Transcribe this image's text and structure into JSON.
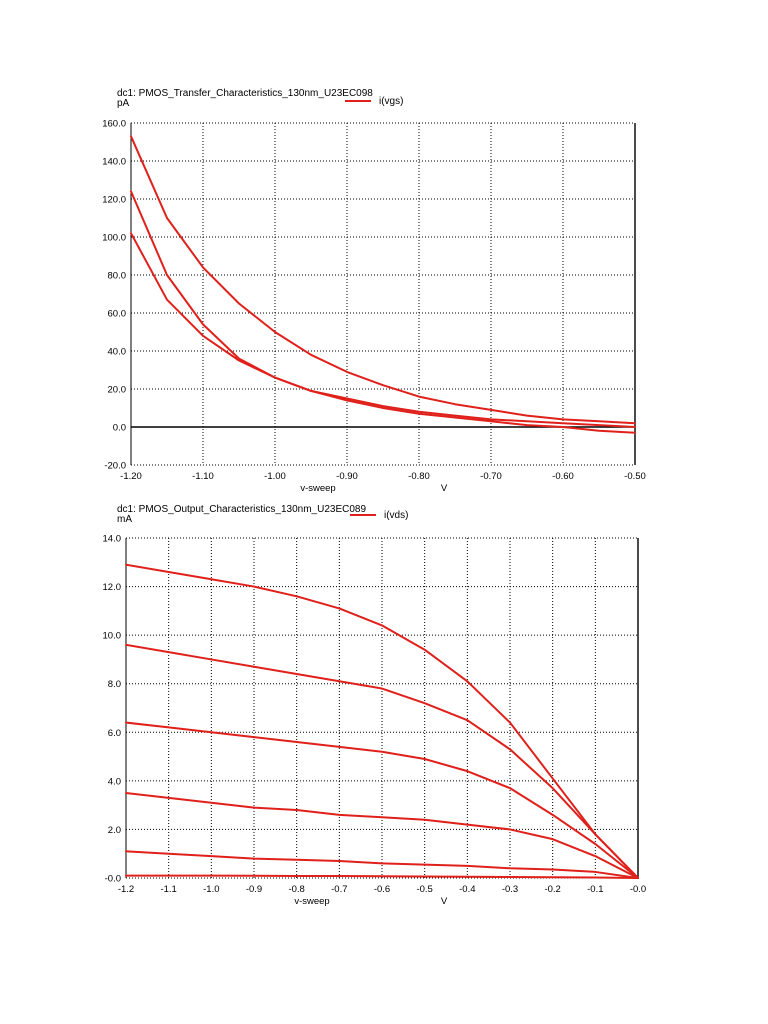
{
  "colors": {
    "curve": "#e0201a",
    "zero_line": "#000000",
    "grid": "#000000",
    "text": "#000000"
  },
  "charts": [
    {
      "title": "dc1: PMOS_Transfer_Characteristics_130nm_U23EC098",
      "unit": "pA",
      "legend": "i(vgs)",
      "xlabel": "v-sweep",
      "xunit": "V"
    },
    {
      "title": "dc1: PMOS_Output_Characteristics_130nm_U23EC089",
      "unit": "mA",
      "legend": "i(vds)",
      "xlabel": "v-sweep",
      "xunit": "V"
    }
  ],
  "chart_data": [
    {
      "type": "line",
      "title": "dc1: PMOS_Transfer_Characteristics_130nm_U23EC098",
      "xlabel": "v-sweep",
      "xunit": "V",
      "ylabel": "pA",
      "xlim": [
        -1.2,
        -0.5
      ],
      "ylim": [
        -20,
        160
      ],
      "xticks": [
        -1.2,
        -1.1,
        -1.0,
        -0.9,
        -0.8,
        -0.7,
        -0.6,
        -0.5
      ],
      "xtick_labels": [
        "-1.20",
        "-1.10",
        "-1.00",
        "-0.90",
        "-0.80",
        "-0.70",
        "-0.60",
        "-0.50"
      ],
      "yticks": [
        -20,
        0,
        20,
        40,
        60,
        80,
        100,
        120,
        140,
        160
      ],
      "ytick_labels": [
        "-20.0",
        "0.0",
        "20.0",
        "40.0",
        "60.0",
        "80.0",
        "100.0",
        "120.0",
        "140.0",
        "160.0"
      ],
      "grid": true,
      "legend": "top",
      "zero_line": true,
      "x": [
        -1.2,
        -1.15,
        -1.1,
        -1.05,
        -1.0,
        -0.95,
        -0.9,
        -0.85,
        -0.8,
        -0.75,
        -0.7,
        -0.65,
        -0.6,
        -0.55,
        -0.5
      ],
      "series": [
        {
          "values": [
            153,
            110,
            84,
            65,
            50,
            38,
            29,
            22,
            16,
            12,
            9,
            6,
            4,
            3,
            2
          ]
        },
        {
          "values": [
            124,
            80,
            54,
            36,
            26,
            19,
            15,
            11,
            8,
            6,
            4,
            3,
            2,
            1,
            0
          ]
        },
        {
          "values": [
            102,
            67,
            48,
            35,
            26,
            19,
            14,
            10,
            7,
            5,
            3,
            1,
            0,
            -2,
            -3
          ]
        }
      ]
    },
    {
      "type": "line",
      "title": "dc1: PMOS_Output_Characteristics_130nm_U23EC089",
      "xlabel": "v-sweep",
      "xunit": "V",
      "ylabel": "mA",
      "xlim": [
        -1.2,
        0.0
      ],
      "ylim": [
        0,
        14
      ],
      "xticks": [
        -1.2,
        -1.1,
        -1.0,
        -0.9,
        -0.8,
        -0.7,
        -0.6,
        -0.5,
        -0.4,
        -0.3,
        -0.2,
        -0.1,
        0.0
      ],
      "xtick_labels": [
        "-1.2",
        "-1.1",
        "-1.0",
        "-0.9",
        "-0.8",
        "-0.7",
        "-0.6",
        "-0.5",
        "-0.4",
        "-0.3",
        "-0.2",
        "-0.1",
        "-0.0"
      ],
      "yticks": [
        0,
        2,
        4,
        6,
        8,
        10,
        12,
        14
      ],
      "ytick_labels": [
        "-0.0",
        "2.0",
        "4.0",
        "6.0",
        "8.0",
        "10.0",
        "12.0",
        "14.0"
      ],
      "grid": true,
      "legend": "top",
      "x": [
        -1.2,
        -1.1,
        -1.0,
        -0.9,
        -0.8,
        -0.7,
        -0.6,
        -0.5,
        -0.4,
        -0.3,
        -0.2,
        -0.1,
        0.0
      ],
      "series": [
        {
          "values": [
            12.9,
            12.6,
            12.3,
            12.0,
            11.6,
            11.1,
            10.4,
            9.4,
            8.1,
            6.4,
            4.1,
            1.8,
            0.0
          ]
        },
        {
          "values": [
            9.6,
            9.3,
            9.0,
            8.7,
            8.4,
            8.1,
            7.8,
            7.2,
            6.5,
            5.3,
            3.7,
            1.8,
            0.0
          ]
        },
        {
          "values": [
            6.4,
            6.2,
            6.0,
            5.8,
            5.6,
            5.4,
            5.2,
            4.9,
            4.4,
            3.7,
            2.6,
            1.4,
            0.0
          ]
        },
        {
          "values": [
            3.5,
            3.3,
            3.1,
            2.9,
            2.8,
            2.6,
            2.5,
            2.4,
            2.2,
            2.0,
            1.6,
            0.9,
            0.0
          ]
        },
        {
          "values": [
            1.1,
            1.0,
            0.9,
            0.8,
            0.75,
            0.7,
            0.6,
            0.55,
            0.5,
            0.4,
            0.35,
            0.25,
            0.0
          ]
        },
        {
          "values": [
            0.1,
            0.1,
            0.1,
            0.09,
            0.08,
            0.08,
            0.07,
            0.06,
            0.05,
            0.04,
            0.03,
            0.02,
            0.0
          ]
        }
      ]
    }
  ]
}
